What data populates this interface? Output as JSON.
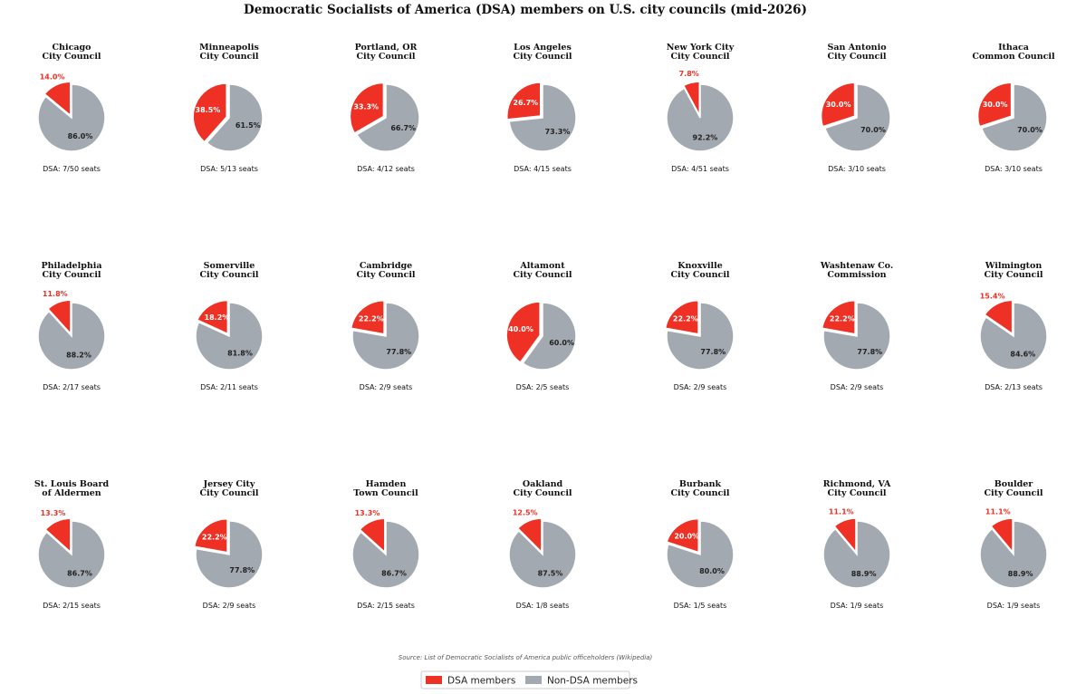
{
  "colors": {
    "dsa": "#ee3124",
    "non_dsa": "#a3a9b1",
    "dsa_outside_label": "#ee3124",
    "dark_label": "#222222",
    "light_label": "#ffffff"
  },
  "chart_data": {
    "type": "pie",
    "title": "Democratic Socialists of America (DSA) members on U.S. city councils (mid-2026)",
    "source": "Source: List of Democratic Socialists of America public officeholders (Wikipedia)",
    "legend": {
      "placement": "bottom-center",
      "entries": [
        "DSA members",
        "Non-DSA members"
      ]
    },
    "categories": [
      "DSA members",
      "Non-DSA members"
    ],
    "pies": [
      {
        "title": [
          "Chicago",
          "City Council"
        ],
        "dsa": 7,
        "total": 50,
        "dsa_label": "14.0%",
        "non_label": "86.0%",
        "seats_label": "DSA: 7/50 seats"
      },
      {
        "title": [
          "Minneapolis",
          "City Council"
        ],
        "dsa": 5,
        "total": 13,
        "dsa_label": "38.5%",
        "non_label": "61.5%",
        "seats_label": "DSA: 5/13 seats"
      },
      {
        "title": [
          "Portland, OR",
          "City Council"
        ],
        "dsa": 4,
        "total": 12,
        "dsa_label": "33.3%",
        "non_label": "66.7%",
        "seats_label": "DSA: 4/12 seats"
      },
      {
        "title": [
          "Los Angeles",
          "City Council"
        ],
        "dsa": 4,
        "total": 15,
        "dsa_label": "26.7%",
        "non_label": "73.3%",
        "seats_label": "DSA: 4/15 seats"
      },
      {
        "title": [
          "New York City",
          "City Council"
        ],
        "dsa": 4,
        "total": 51,
        "dsa_label": "7.8%",
        "non_label": "92.2%",
        "seats_label": "DSA: 4/51 seats"
      },
      {
        "title": [
          "San Antonio",
          "City Council"
        ],
        "dsa": 3,
        "total": 10,
        "dsa_label": "30.0%",
        "non_label": "70.0%",
        "seats_label": "DSA: 3/10 seats"
      },
      {
        "title": [
          "Ithaca",
          "Common Council"
        ],
        "dsa": 3,
        "total": 10,
        "dsa_label": "30.0%",
        "non_label": "70.0%",
        "seats_label": "DSA: 3/10 seats"
      },
      {
        "title": [
          "Philadelphia",
          "City Council"
        ],
        "dsa": 2,
        "total": 17,
        "dsa_label": "11.8%",
        "non_label": "88.2%",
        "seats_label": "DSA: 2/17 seats"
      },
      {
        "title": [
          "Somerville",
          "City Council"
        ],
        "dsa": 2,
        "total": 11,
        "dsa_label": "18.2%",
        "non_label": "81.8%",
        "seats_label": "DSA: 2/11 seats"
      },
      {
        "title": [
          "Cambridge",
          "City Council"
        ],
        "dsa": 2,
        "total": 9,
        "dsa_label": "22.2%",
        "non_label": "77.8%",
        "seats_label": "DSA: 2/9 seats"
      },
      {
        "title": [
          "Altamont",
          "City Council"
        ],
        "dsa": 2,
        "total": 5,
        "dsa_label": "40.0%",
        "non_label": "60.0%",
        "seats_label": "DSA: 2/5 seats"
      },
      {
        "title": [
          "Knoxville",
          "City Council"
        ],
        "dsa": 2,
        "total": 9,
        "dsa_label": "22.2%",
        "non_label": "77.8%",
        "seats_label": "DSA: 2/9 seats"
      },
      {
        "title": [
          "Washtenaw Co.",
          "Commission"
        ],
        "dsa": 2,
        "total": 9,
        "dsa_label": "22.2%",
        "non_label": "77.8%",
        "seats_label": "DSA: 2/9 seats"
      },
      {
        "title": [
          "Wilmington",
          "City Council"
        ],
        "dsa": 2,
        "total": 13,
        "dsa_label": "15.4%",
        "non_label": "84.6%",
        "seats_label": "DSA: 2/13 seats"
      },
      {
        "title": [
          "St. Louis Board",
          "of Aldermen"
        ],
        "dsa": 2,
        "total": 15,
        "dsa_label": "13.3%",
        "non_label": "86.7%",
        "seats_label": "DSA: 2/15 seats"
      },
      {
        "title": [
          "Jersey City",
          "City Council"
        ],
        "dsa": 2,
        "total": 9,
        "dsa_label": "22.2%",
        "non_label": "77.8%",
        "seats_label": "DSA: 2/9 seats"
      },
      {
        "title": [
          "Hamden",
          "Town Council"
        ],
        "dsa": 2,
        "total": 15,
        "dsa_label": "13.3%",
        "non_label": "86.7%",
        "seats_label": "DSA: 2/15 seats"
      },
      {
        "title": [
          "Oakland",
          "City Council"
        ],
        "dsa": 1,
        "total": 8,
        "dsa_label": "12.5%",
        "non_label": "87.5%",
        "seats_label": "DSA: 1/8 seats"
      },
      {
        "title": [
          "Burbank",
          "City Council"
        ],
        "dsa": 1,
        "total": 5,
        "dsa_label": "20.0%",
        "non_label": "80.0%",
        "seats_label": "DSA: 1/5 seats"
      },
      {
        "title": [
          "Richmond, VA",
          "City Council"
        ],
        "dsa": 1,
        "total": 9,
        "dsa_label": "11.1%",
        "non_label": "88.9%",
        "seats_label": "DSA: 1/9 seats"
      },
      {
        "title": [
          "Boulder",
          "City Council"
        ],
        "dsa": 1,
        "total": 9,
        "dsa_label": "11.1%",
        "non_label": "88.9%",
        "seats_label": "DSA: 1/9 seats"
      }
    ]
  }
}
